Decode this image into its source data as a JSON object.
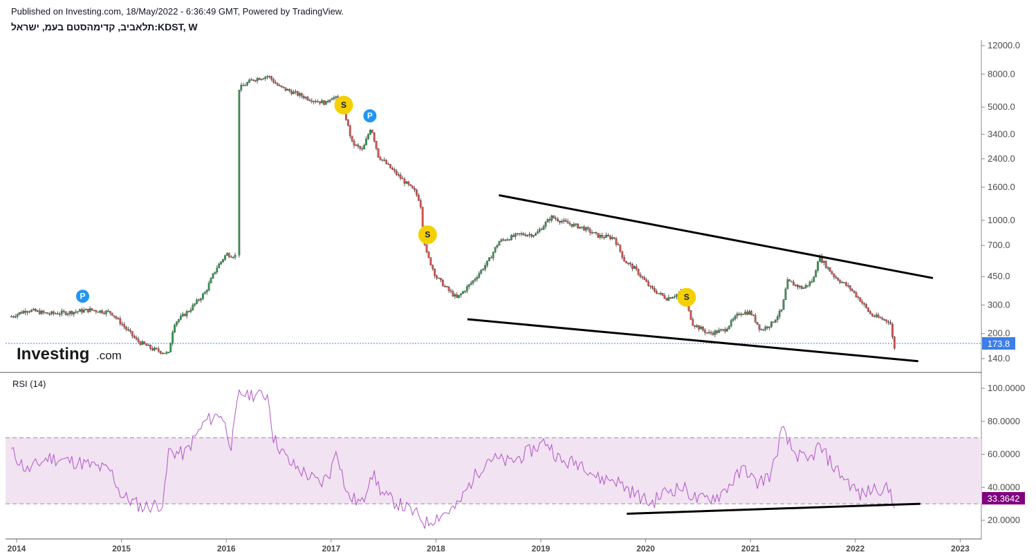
{
  "header": {
    "published": "Published on Investing.com, 18/May/2022 - 6:36:49 GMT, Powered by TradingView.",
    "symbol": "תלאביב, קדימהסטם בעמ, ישראל:KDST, W"
  },
  "logo": {
    "text": "Investing",
    "suffix": ".com"
  },
  "colors": {
    "up": "#26a69a",
    "up_fill": "#2e9e4f",
    "down": "#e0474c",
    "down_fill": "#d9534f",
    "rsi_line": "#b054c8",
    "rsi_band": "#f1e3f1",
    "last_price_bg": "#3d7ee8",
    "rsi_value_bg": "#800080",
    "trendline": "#000000",
    "dotted_price_line": "#3d7ee8"
  },
  "chart_data": [
    {
      "type": "candlestick",
      "title": "KDST, W",
      "scale": "log",
      "y_ticks": [
        "12000.0",
        "8000.0",
        "5000.0",
        "3400.0",
        "2400.0",
        "1600.0",
        "1000.0",
        "700.0",
        "450.0",
        "300.0",
        "200.0",
        "140.0"
      ],
      "x_ticks": [
        "2014",
        "2015",
        "2016",
        "2017",
        "2018",
        "2019",
        "2020",
        "2021",
        "2022",
        "2023"
      ],
      "last_price": "173.8",
      "ylim": [
        120,
        14000
      ],
      "markers": [
        {
          "type": "P",
          "label": "P",
          "date": 2014.63,
          "price": 340
        },
        {
          "type": "S",
          "label": "S",
          "date": 2017.12,
          "price": 5150
        },
        {
          "type": "P",
          "label": "P",
          "date": 2017.37,
          "price": 4420
        },
        {
          "type": "S",
          "label": "S",
          "date": 2017.92,
          "price": 815
        },
        {
          "type": "S",
          "label": "S",
          "date": 2020.39,
          "price": 335
        }
      ],
      "trendlines": [
        {
          "from": {
            "date": 2018.6,
            "price": 1430
          },
          "to": {
            "date": 2022.74,
            "price": 440
          }
        },
        {
          "from": {
            "date": 2018.3,
            "price": 245
          },
          "to": {
            "date": 2022.6,
            "price": 135
          }
        }
      ],
      "price_line": 173.8
    },
    {
      "type": "line",
      "title": "RSI (14)",
      "y_ticks": [
        "100.0000",
        "80.0000",
        "60.0000",
        "40.0000",
        "20.0000"
      ],
      "ylim": [
        8,
        104
      ],
      "band": [
        30,
        70
      ],
      "last_value": "33.3642",
      "trendline": {
        "from": {
          "date": 2019.82,
          "value": 24
        },
        "to": {
          "date": 2022.62,
          "value": 30
        }
      }
    }
  ]
}
